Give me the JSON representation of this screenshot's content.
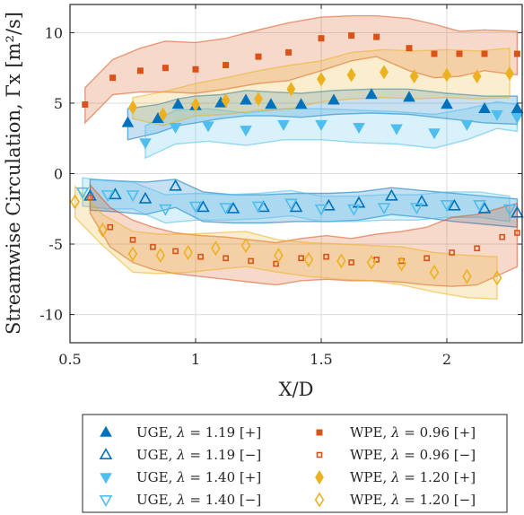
{
  "chart_data": {
    "type": "scatter",
    "xlabel": "X/D",
    "ylabel": "Streamwise Circulation, Γx [m²/s]",
    "xlim": [
      0.5,
      2.3
    ],
    "ylim": [
      -12,
      12
    ],
    "xticks": [
      "0.5",
      "1",
      "1.5",
      "2"
    ],
    "xtick_values": [
      0.5,
      1,
      1.5,
      2
    ],
    "yticks": [
      "10",
      "5",
      "0",
      "-5",
      "-10"
    ],
    "ytick_values": [
      10,
      5,
      0,
      -5,
      -10
    ],
    "grid": true,
    "legend_position": "bottom, outside, 2 columns",
    "series": [
      {
        "name": "UGE, λ = 1.19 [+]",
        "label": "UGE, ",
        "lambda": "1.19",
        "sign": "+",
        "marker": "triangle-up",
        "filled": true,
        "color": "#0072BD",
        "x": [
          0.73,
          0.85,
          0.93,
          1.0,
          1.1,
          1.2,
          1.3,
          1.42,
          1.55,
          1.7,
          1.85,
          2.0,
          2.15,
          2.28
        ],
        "y": [
          3.6,
          3.9,
          4.9,
          4.8,
          5.0,
          5.2,
          4.9,
          4.9,
          5.2,
          5.6,
          5.4,
          4.9,
          4.6,
          4.6
        ],
        "band_upper": [
          4.6,
          4.9,
          5.3,
          5.5,
          5.6,
          5.9,
          5.8,
          5.7,
          5.9,
          6.0,
          6.0,
          5.7,
          5.5,
          5.5
        ],
        "band_lower": [
          2.4,
          2.9,
          3.4,
          3.6,
          3.9,
          4.1,
          4.1,
          4.0,
          4.2,
          4.3,
          4.2,
          3.9,
          3.6,
          3.5
        ]
      },
      {
        "name": "UGE, λ = 1.19 [−]",
        "label": "UGE, ",
        "lambda": "1.19",
        "sign": "−",
        "marker": "triangle-up",
        "filled": false,
        "color": "#0072BD",
        "x": [
          0.58,
          0.68,
          0.8,
          0.92,
          1.03,
          1.15,
          1.27,
          1.4,
          1.53,
          1.65,
          1.78,
          1.9,
          2.03,
          2.15,
          2.28
        ],
        "y": [
          -1.6,
          -1.5,
          -1.8,
          -0.9,
          -2.4,
          -2.5,
          -2.4,
          -2.4,
          -2.3,
          -2.1,
          -1.6,
          -2.0,
          -2.3,
          -2.5,
          -2.8
        ],
        "band_upper": [
          -0.4,
          -0.5,
          -0.6,
          -0.4,
          -1.3,
          -1.5,
          -1.5,
          -1.4,
          -1.4,
          -1.3,
          -1.0,
          -1.2,
          -1.4,
          -1.6,
          -1.8
        ],
        "band_lower": [
          -2.6,
          -2.7,
          -2.9,
          -2.4,
          -3.4,
          -3.5,
          -3.5,
          -3.4,
          -3.4,
          -3.3,
          -2.9,
          -3.1,
          -3.4,
          -3.6,
          -3.8
        ]
      },
      {
        "name": "UGE, λ = 1.40 [+]",
        "label": "UGE, ",
        "lambda": "1.40",
        "sign": "+",
        "marker": "triangle-down",
        "filled": true,
        "color": "#4DBEEE",
        "x": [
          0.8,
          0.92,
          1.05,
          1.2,
          1.35,
          1.5,
          1.65,
          1.8,
          1.95,
          2.08,
          2.2,
          2.28
        ],
        "y": [
          2.2,
          3.3,
          3.4,
          3.1,
          3.5,
          3.5,
          3.3,
          3.2,
          2.9,
          3.5,
          4.2,
          4.0
        ],
        "band_upper": [
          3.4,
          4.5,
          4.6,
          4.3,
          4.6,
          4.6,
          4.5,
          4.4,
          4.2,
          4.6,
          5.1,
          4.9
        ],
        "band_lower": [
          1.1,
          2.1,
          2.3,
          2.0,
          2.4,
          2.4,
          2.2,
          2.1,
          1.8,
          2.4,
          3.2,
          3.0
        ]
      },
      {
        "name": "UGE, λ = 1.40 [−]",
        "label": "UGE, ",
        "lambda": "1.40",
        "sign": "−",
        "marker": "triangle-down",
        "filled": false,
        "color": "#4DBEEE",
        "x": [
          0.55,
          0.65,
          0.75,
          0.88,
          1.0,
          1.12,
          1.25,
          1.38,
          1.5,
          1.63,
          1.75,
          1.88,
          2.0,
          2.13,
          2.25
        ],
        "y": [
          -1.3,
          -1.5,
          -1.5,
          -2.5,
          -2.3,
          -2.4,
          -2.3,
          -2.1,
          -2.5,
          -2.5,
          -2.4,
          -2.4,
          -2.2,
          -2.2,
          -2.5
        ],
        "band_upper": [
          -0.3,
          -0.5,
          -0.6,
          -1.5,
          -1.4,
          -1.5,
          -1.4,
          -1.2,
          -1.6,
          -1.6,
          -1.5,
          -1.5,
          -1.3,
          -1.3,
          -1.6
        ],
        "band_lower": [
          -2.3,
          -2.5,
          -2.5,
          -3.5,
          -3.3,
          -3.3,
          -3.2,
          -3.0,
          -3.4,
          -3.4,
          -3.3,
          -3.3,
          -3.1,
          -3.1,
          -3.4
        ]
      },
      {
        "name": "WPE, λ = 0.96 [+]",
        "label": "WPE, ",
        "lambda": "0.96",
        "sign": "+",
        "marker": "square",
        "filled": true,
        "color": "#D95319",
        "x": [
          0.56,
          0.67,
          0.78,
          0.88,
          1.0,
          1.12,
          1.25,
          1.37,
          1.5,
          1.62,
          1.72,
          1.85,
          1.95,
          2.05,
          2.15,
          2.28
        ],
        "y": [
          4.9,
          6.8,
          7.3,
          7.5,
          7.4,
          7.7,
          8.3,
          8.6,
          9.6,
          9.8,
          9.7,
          8.9,
          8.5,
          8.5,
          8.5,
          8.5
        ],
        "band_upper": [
          6.1,
          8.1,
          8.9,
          9.4,
          9.3,
          9.6,
          10.2,
          10.7,
          11.1,
          11.2,
          11.2,
          11.0,
          10.6,
          10.1,
          10.2,
          10.1
        ],
        "band_lower": [
          3.6,
          5.6,
          5.8,
          5.8,
          5.7,
          6.0,
          6.4,
          6.6,
          7.3,
          8.0,
          8.3,
          7.3,
          6.8,
          6.9,
          7.3,
          7.0
        ]
      },
      {
        "name": "WPE, λ = 0.96 [−]",
        "label": "WPE, ",
        "lambda": "0.96",
        "sign": "−",
        "marker": "square",
        "filled": false,
        "color": "#D95319",
        "x": [
          0.58,
          0.66,
          0.75,
          0.83,
          0.92,
          1.02,
          1.12,
          1.22,
          1.32,
          1.42,
          1.52,
          1.62,
          1.72,
          1.82,
          1.92,
          2.02,
          2.12,
          2.22,
          2.28
        ],
        "y": [
          -1.7,
          -3.8,
          -4.7,
          -5.2,
          -5.5,
          -5.9,
          -6.0,
          -6.2,
          -6.4,
          -6.0,
          -5.9,
          -6.3,
          -6.1,
          -6.2,
          -6.0,
          -5.6,
          -5.3,
          -4.5,
          -4.2
        ],
        "band_upper": [
          -0.8,
          -2.4,
          -3.3,
          -3.8,
          -4.2,
          -4.4,
          -4.5,
          -4.7,
          -4.9,
          -4.6,
          -4.4,
          -4.6,
          -4.3,
          -4.1,
          -3.8,
          -3.1,
          -2.9,
          -2.4,
          -2.1
        ],
        "band_lower": [
          -2.8,
          -5.2,
          -6.3,
          -6.8,
          -7.1,
          -7.3,
          -7.5,
          -7.7,
          -7.9,
          -7.6,
          -7.5,
          -7.6,
          -7.6,
          -7.7,
          -7.9,
          -8.0,
          -7.9,
          -7.1,
          -6.6
        ]
      },
      {
        "name": "WPE, λ = 1.20 [+]",
        "label": "WPE, ",
        "lambda": "1.20",
        "sign": "+",
        "marker": "diamond",
        "filled": true,
        "color": "#EDB120",
        "x": [
          0.75,
          0.87,
          1.0,
          1.12,
          1.25,
          1.38,
          1.5,
          1.62,
          1.75,
          1.87,
          2.0,
          2.12,
          2.25
        ],
        "y": [
          4.7,
          4.2,
          4.9,
          5.2,
          5.3,
          6.0,
          6.7,
          7.0,
          7.2,
          6.9,
          7.0,
          6.9,
          7.1
        ],
        "band_upper": [
          5.4,
          5.8,
          6.4,
          6.8,
          7.3,
          7.7,
          8.0,
          8.6,
          8.8,
          8.7,
          8.8,
          8.7,
          8.9
        ],
        "band_lower": [
          3.9,
          3.4,
          4.1,
          4.2,
          4.5,
          4.6,
          5.1,
          5.3,
          5.4,
          5.3,
          5.4,
          5.3,
          5.4
        ]
      },
      {
        "name": "WPE, λ = 1.20 [−]",
        "label": "WPE, ",
        "lambda": "1.20",
        "sign": "−",
        "marker": "diamond",
        "filled": false,
        "color": "#EDB120",
        "x": [
          0.52,
          0.63,
          0.75,
          0.86,
          0.97,
          1.08,
          1.2,
          1.33,
          1.45,
          1.58,
          1.7,
          1.82,
          1.95,
          2.08,
          2.2
        ],
        "y": [
          -2.0,
          -4.0,
          -5.7,
          -5.8,
          -5.6,
          -5.3,
          -5.1,
          -5.8,
          -6.1,
          -6.2,
          -6.3,
          -6.4,
          -7.0,
          -7.3,
          -7.4
        ],
        "band_upper": [
          -0.9,
          -2.9,
          -4.1,
          -4.3,
          -4.3,
          -4.2,
          -4.1,
          -4.7,
          -4.9,
          -5.0,
          -5.1,
          -5.2,
          -5.6,
          -5.8,
          -5.9
        ],
        "band_lower": [
          -3.1,
          -5.1,
          -7.0,
          -7.1,
          -7.0,
          -6.8,
          -6.6,
          -7.0,
          -7.3,
          -7.5,
          -7.6,
          -7.9,
          -8.4,
          -8.8,
          -8.9
        ]
      }
    ]
  }
}
